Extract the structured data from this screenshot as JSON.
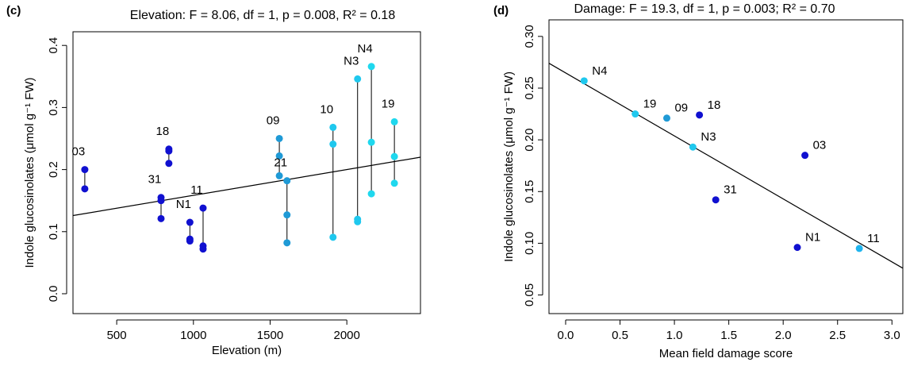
{
  "chart_data": [
    {
      "type": "scatter",
      "panel_label": "(c)",
      "title": "Elevation: F = 8.06, df = 1, p = 0.008, R² = 0.18",
      "x_label": "Elevation (m)",
      "y_label": "Indole glucosinolates (μmol g⁻¹ FW)",
      "xlim": [
        215,
        2480
      ],
      "ylim": [
        -0.032,
        0.422
      ],
      "xticks": [
        500,
        1000,
        1500,
        2000
      ],
      "yticks": [
        {
          "value": 0,
          "label": "0.0"
        },
        0.1,
        0.2,
        0.3,
        0.4
      ],
      "fit": {
        "intercept": 0.117,
        "slope": 4.15e-05
      },
      "series": [
        {
          "name": "03",
          "color": "#1010d0",
          "x": [
            292,
            292
          ],
          "values": [
            0.2,
            0.169
          ]
        },
        {
          "name": "31",
          "color": "#1010d0",
          "x": [
            789,
            789,
            789
          ],
          "values": [
            0.155,
            0.15,
            0.121
          ]
        },
        {
          "name": "18",
          "color": "#1010d0",
          "x": [
            840,
            840,
            840
          ],
          "values": [
            0.233,
            0.23,
            0.21
          ]
        },
        {
          "name": "N1",
          "color": "#1010d0",
          "x": [
            977,
            977,
            977
          ],
          "values": [
            0.115,
            0.088,
            0.085
          ]
        },
        {
          "name": "11",
          "color": "#1010d0",
          "x": [
            1063,
            1063,
            1063
          ],
          "values": [
            0.138,
            0.077,
            0.072
          ]
        },
        {
          "name": "09",
          "color": "#1f9ad6",
          "x": [
            1560,
            1560,
            1560
          ],
          "values": [
            0.25,
            0.222,
            0.19
          ]
        },
        {
          "name": "21",
          "color": "#1f9ad6",
          "x": [
            1610,
            1610,
            1610
          ],
          "values": [
            0.182,
            0.127,
            0.082
          ]
        },
        {
          "name": "10",
          "color": "#1fc8ee",
          "x": [
            1910,
            1910,
            1910
          ],
          "values": [
            0.268,
            0.241,
            0.091
          ]
        },
        {
          "name": "N3",
          "color": "#1fc8ee",
          "x": [
            2070,
            2070,
            2070
          ],
          "values": [
            0.346,
            0.12,
            0.116
          ]
        },
        {
          "name": "N4",
          "color": "#1fd8ee",
          "x": [
            2160,
            2160,
            2160
          ],
          "values": [
            0.366,
            0.244,
            0.161
          ]
        },
        {
          "name": "19",
          "color": "#1fd8ee",
          "x": [
            2310,
            2310,
            2310
          ],
          "values": [
            0.277,
            0.221,
            0.178
          ]
        }
      ]
    },
    {
      "type": "scatter",
      "panel_label": "(d)",
      "title": "Damage: F = 19.3, df = 1, p = 0.003; R² = 0.70",
      "x_label": "Mean field damage score",
      "y_label": "Indole glucosinolates (μmol g⁻¹ FW)",
      "xlim": [
        -0.153,
        3.1
      ],
      "ylim": [
        0.032,
        0.316
      ],
      "xticks": [
        {
          "value": 0,
          "label": "0.0"
        },
        0.5,
        {
          "value": 1,
          "label": "1.0"
        },
        1.5,
        {
          "value": 2,
          "label": "2.0"
        },
        2.5,
        {
          "value": 3,
          "label": "3.0"
        }
      ],
      "yticks": [
        0.05,
        {
          "value": 0.1,
          "label": "0.10"
        },
        0.15,
        {
          "value": 0.2,
          "label": "0.20"
        },
        0.25,
        {
          "value": 0.3,
          "label": "0.30"
        }
      ],
      "fit": {
        "intercept": 0.2647,
        "slope": -0.0609
      },
      "point_labels": [
        "N4",
        "19",
        "09",
        "18",
        "N3",
        "03",
        "31",
        "N1",
        "11"
      ],
      "colors": [
        "#1fc8ee",
        "#1fc8ee",
        "#1f9ad6",
        "#1010d0",
        "#1fc8ee",
        "#1010d0",
        "#1010d0",
        "#1010d0",
        "#1fb4ee"
      ],
      "x": [
        0.17,
        0.64,
        0.93,
        1.23,
        1.17,
        2.2,
        1.38,
        2.13,
        2.7
      ],
      "values": [
        0.257,
        0.225,
        0.221,
        0.224,
        0.193,
        0.185,
        0.142,
        0.096,
        0.095
      ]
    }
  ]
}
